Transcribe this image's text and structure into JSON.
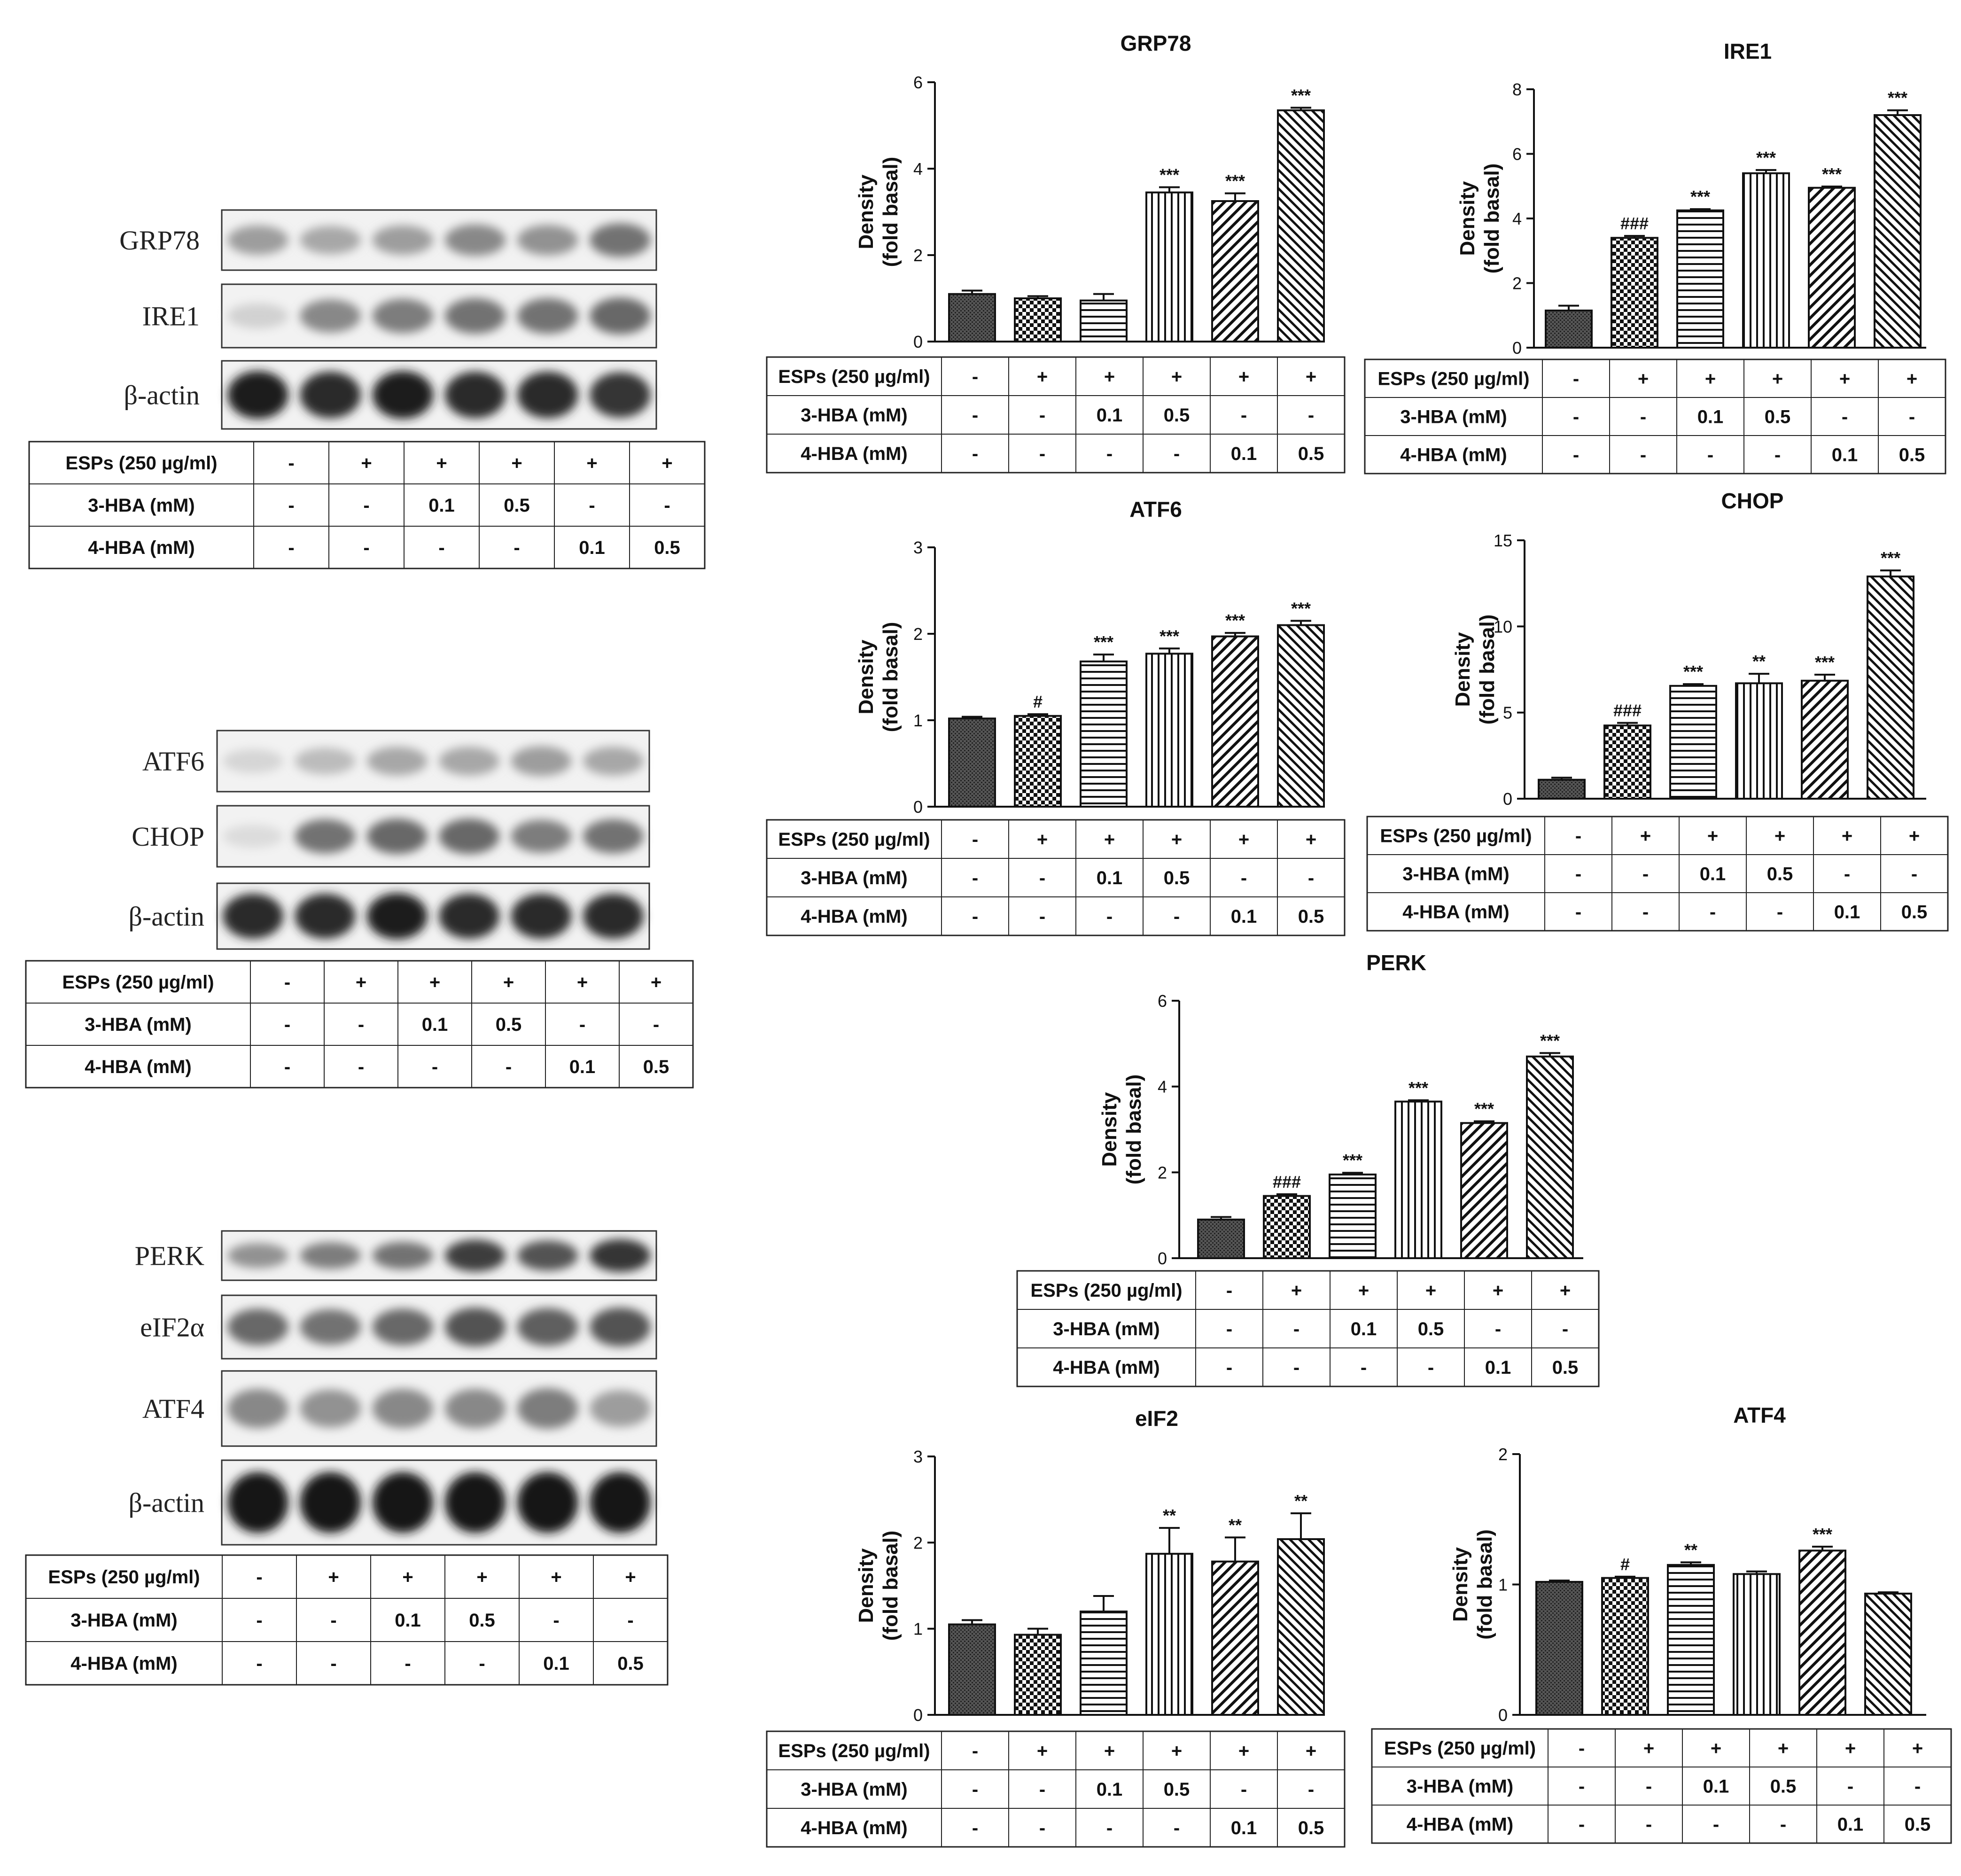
{
  "treatment_table": {
    "rows": [
      {
        "label": "ESPs (250 µg/ml)",
        "values": [
          "-",
          "+",
          "+",
          "+",
          "+",
          "+"
        ]
      },
      {
        "label": "3-HBA (mM)",
        "values": [
          "-",
          "-",
          "0.1",
          "0.5",
          "-",
          "-"
        ]
      },
      {
        "label": "4-HBA (mM)",
        "values": [
          "-",
          "-",
          "-",
          "-",
          "0.1",
          "0.5"
        ]
      }
    ]
  },
  "blot_panels": [
    {
      "bands": [
        {
          "label": "GRP78",
          "intensity": [
            0.35,
            0.3,
            0.35,
            0.45,
            0.4,
            0.55
          ]
        },
        {
          "label": "IRE1",
          "intensity": [
            0.1,
            0.45,
            0.5,
            0.55,
            0.55,
            0.6
          ]
        },
        {
          "label": "β-actin",
          "intensity": [
            0.95,
            0.9,
            0.95,
            0.9,
            0.9,
            0.85
          ]
        }
      ]
    },
    {
      "bands": [
        {
          "label": "ATF6",
          "intensity": [
            0.08,
            0.2,
            0.3,
            0.3,
            0.35,
            0.3
          ]
        },
        {
          "label": "CHOP",
          "intensity": [
            0.05,
            0.55,
            0.6,
            0.6,
            0.5,
            0.55
          ]
        },
        {
          "label": "β-actin",
          "intensity": [
            0.9,
            0.9,
            0.95,
            0.9,
            0.9,
            0.9
          ]
        }
      ]
    },
    {
      "bands": [
        {
          "label": "PERK",
          "intensity": [
            0.4,
            0.5,
            0.55,
            0.8,
            0.7,
            0.85
          ]
        },
        {
          "label": "eIF2α",
          "intensity": [
            0.6,
            0.55,
            0.6,
            0.7,
            0.65,
            0.7
          ]
        },
        {
          "label": "ATF4",
          "intensity": [
            0.45,
            0.4,
            0.45,
            0.45,
            0.5,
            0.35
          ]
        },
        {
          "label": "β-actin",
          "intensity": [
            1.0,
            1.0,
            1.0,
            1.0,
            1.0,
            1.0
          ]
        }
      ]
    }
  ],
  "axis_label_top": "Density",
  "axis_label_bottom": "(fold basal)",
  "chart_data": [
    {
      "type": "bar",
      "title": "GRP78",
      "ylim": [
        0,
        6
      ],
      "yticks": [
        0,
        2,
        4,
        6
      ],
      "values": [
        1.1,
        1.0,
        0.95,
        3.45,
        3.25,
        5.35
      ],
      "errors": [
        0.08,
        0.05,
        0.15,
        0.12,
        0.18,
        0.06
      ],
      "annotations": [
        "",
        "",
        "",
        "***",
        "***",
        "***"
      ]
    },
    {
      "type": "bar",
      "title": "IRE1",
      "ylim": [
        0,
        8
      ],
      "yticks": [
        0,
        2,
        4,
        6,
        8
      ],
      "values": [
        1.15,
        3.4,
        4.25,
        5.4,
        4.95,
        7.2
      ],
      "errors": [
        0.15,
        0.06,
        0.04,
        0.1,
        0.04,
        0.15
      ],
      "annotations": [
        "",
        "###",
        "***",
        "***",
        "***",
        "***"
      ]
    },
    {
      "type": "bar",
      "title": "ATF6",
      "ylim": [
        0,
        3
      ],
      "yticks": [
        0,
        1,
        2,
        3
      ],
      "values": [
        1.02,
        1.05,
        1.68,
        1.77,
        1.97,
        2.1
      ],
      "errors": [
        0.02,
        0.02,
        0.08,
        0.06,
        0.04,
        0.05
      ],
      "annotations": [
        "",
        "#",
        "***",
        "***",
        "***",
        "***"
      ]
    },
    {
      "type": "bar",
      "title": "CHOP",
      "ylim": [
        0,
        15
      ],
      "yticks": [
        0,
        5,
        10,
        15
      ],
      "values": [
        1.1,
        4.25,
        6.55,
        6.7,
        6.85,
        12.9
      ],
      "errors": [
        0.12,
        0.15,
        0.1,
        0.55,
        0.35,
        0.35
      ],
      "annotations": [
        "",
        "###",
        "***",
        "**",
        "***",
        "***"
      ]
    },
    {
      "type": "bar",
      "title": "PERK",
      "ylim": [
        0,
        6
      ],
      "yticks": [
        0,
        2,
        4,
        6
      ],
      "values": [
        0.9,
        1.45,
        1.95,
        3.65,
        3.15,
        4.7
      ],
      "errors": [
        0.06,
        0.04,
        0.04,
        0.03,
        0.04,
        0.08
      ],
      "annotations": [
        "",
        "###",
        "***",
        "***",
        "***",
        "***"
      ]
    },
    {
      "type": "bar",
      "title": "eIF2",
      "ylim": [
        0,
        3
      ],
      "yticks": [
        0,
        1,
        2,
        3
      ],
      "values": [
        1.05,
        0.93,
        1.2,
        1.87,
        1.78,
        2.04
      ],
      "errors": [
        0.05,
        0.07,
        0.18,
        0.3,
        0.28,
        0.3
      ],
      "annotations": [
        "",
        "",
        "",
        "**",
        "**",
        "**"
      ]
    },
    {
      "type": "bar",
      "title": "ATF4",
      "ylim": [
        0,
        2
      ],
      "yticks": [
        0,
        1,
        2
      ],
      "values": [
        1.02,
        1.05,
        1.15,
        1.08,
        1.26,
        0.93
      ],
      "errors": [
        0.01,
        0.01,
        0.02,
        0.02,
        0.03,
        0.01
      ],
      "annotations": [
        "",
        "#",
        "**",
        "",
        "***",
        ""
      ]
    }
  ],
  "colors": {
    "ink": "#111111",
    "band": "#1a1a1a",
    "blot_bg": "#f2f2f2"
  }
}
